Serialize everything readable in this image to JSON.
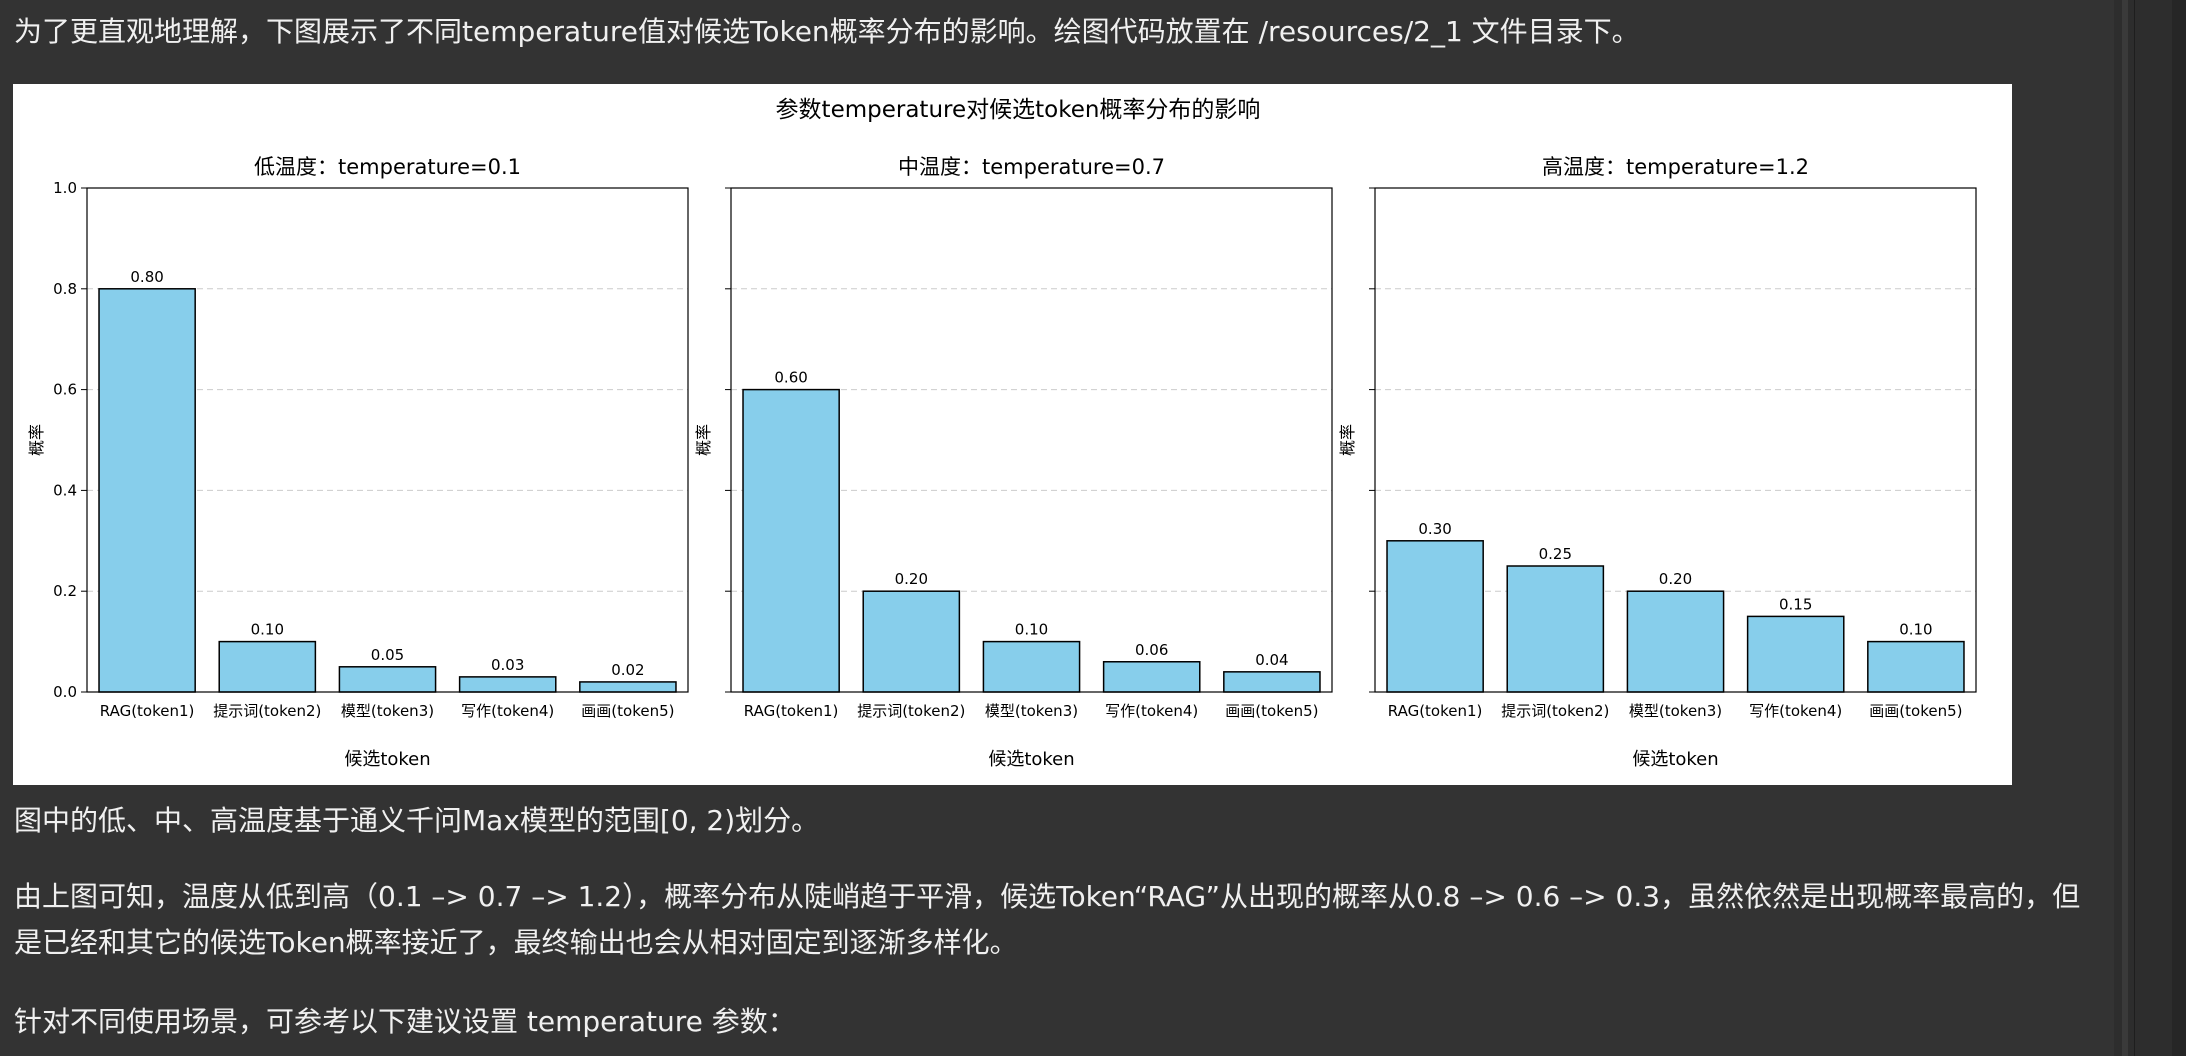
{
  "document": {
    "intro": "为了更直观地理解，下图展示了不同temperature值对候选Token概率分布的影响。绘图代码放置在 /resources/2_1 文件目录下。",
    "note": "图中的低、中、高温度基于通义千问Max模型的范围[0, 2)划分。",
    "analysis_line1": "由上图可知，温度从低到高（0.1 –> 0.7 –> 1.2），概率分布从陡峭趋于平滑，候选Token“RAG”从出现的概率从0.8 –> 0.6 –> 0.3，虽然依然是出现概率最高的，但",
    "analysis_line2": "是已经和其它的候选Token概率接近了，最终输出也会从相对固定到逐渐多样化。",
    "advice": "针对不同使用场景，可参考以下建议设置 temperature 参数："
  },
  "colors": {
    "bar_fill": "#87ceeb",
    "bar_edge": "#000000",
    "grid": "#cccccc",
    "page_bg": "#333333",
    "text": "#f0f0f0"
  },
  "chart_data": {
    "type": "bar",
    "title": "参数temperature对候选token概率分布的影响",
    "shared_y": true,
    "grid": "y-dashed",
    "ylim": [
      0,
      1.0
    ],
    "yticks": [
      "0.0",
      "0.2",
      "0.4",
      "0.6",
      "0.8",
      "1.0"
    ],
    "panels": [
      {
        "title": "低温度：temperature=0.1",
        "xlabel": "候选token",
        "ylabel": "概率",
        "categories": [
          "RAG(token1)",
          "提示词(token2)",
          "模型(token3)",
          "写作(token4)",
          "画画(token5)"
        ],
        "values": [
          0.8,
          0.1,
          0.05,
          0.03,
          0.02
        ],
        "labels": [
          "0.80",
          "0.10",
          "0.05",
          "0.03",
          "0.02"
        ]
      },
      {
        "title": "中温度：temperature=0.7",
        "xlabel": "候选token",
        "ylabel": "概率",
        "categories": [
          "RAG(token1)",
          "提示词(token2)",
          "模型(token3)",
          "写作(token4)",
          "画画(token5)"
        ],
        "values": [
          0.6,
          0.2,
          0.1,
          0.06,
          0.04
        ],
        "labels": [
          "0.60",
          "0.20",
          "0.10",
          "0.06",
          "0.04"
        ]
      },
      {
        "title": "高温度：temperature=1.2",
        "xlabel": "候选token",
        "ylabel": "概率",
        "categories": [
          "RAG(token1)",
          "提示词(token2)",
          "模型(token3)",
          "写作(token4)",
          "画画(token5)"
        ],
        "values": [
          0.3,
          0.25,
          0.2,
          0.15,
          0.1
        ],
        "labels": [
          "0.30",
          "0.25",
          "0.20",
          "0.15",
          "0.10"
        ]
      }
    ]
  }
}
